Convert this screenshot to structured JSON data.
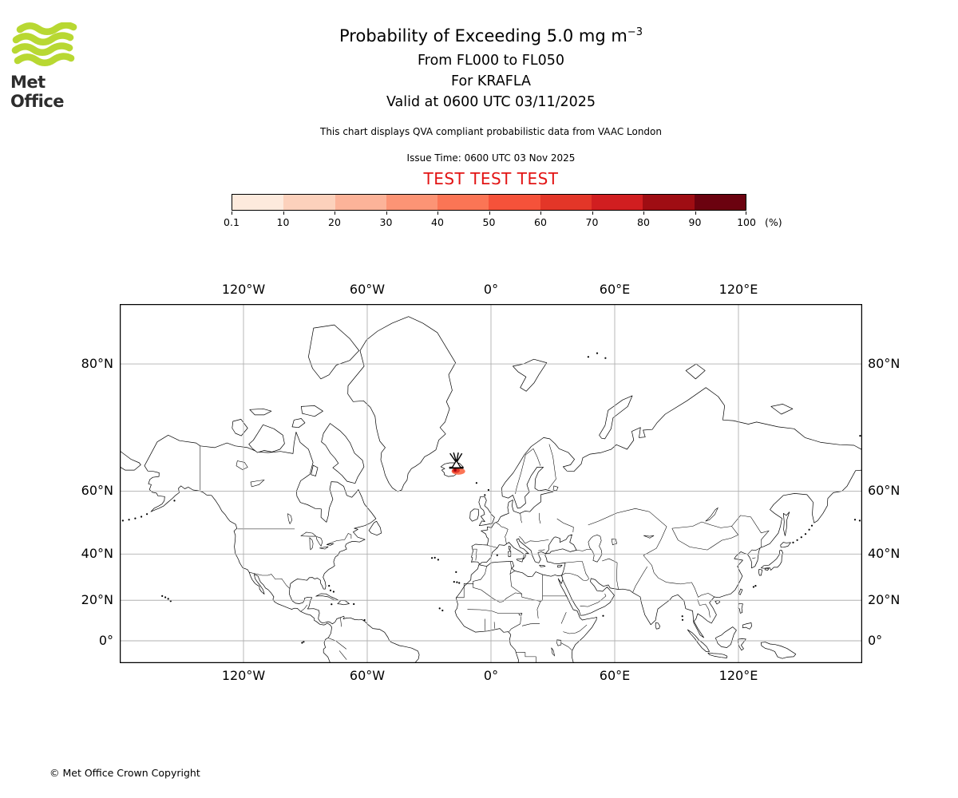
{
  "logo": {
    "text": "Met Office",
    "wave_color": "#b8d832",
    "text_color": "#2d2d2d"
  },
  "header": {
    "title_main": "Probability of Exceeding 5.0 mg m",
    "title_sup": "−3",
    "line2": "From FL000 to FL050",
    "line3": "For KRAFLA",
    "line4": "Valid at 0600 UTC 03/11/2025"
  },
  "note": "This chart displays QVA compliant probabilistic data from VAAC London",
  "issue_time": "Issue Time: 0600 UTC 03 Nov 2025",
  "test_banner": "TEST TEST TEST",
  "test_color": "#e21414",
  "colorbar": {
    "unit_label": "(%)",
    "tick_labels": [
      "0.1",
      "10",
      "20",
      "30",
      "40",
      "50",
      "60",
      "70",
      "80",
      "90",
      "100"
    ],
    "colors": [
      "#fdeadd",
      "#fcd1bc",
      "#fcb399",
      "#fc9475",
      "#fb7555",
      "#f5523a",
      "#e33628",
      "#d11e20",
      "#9f0d13",
      "#6b020f"
    ]
  },
  "map": {
    "top_lon_labels": [
      "120°W",
      "60°W",
      "0°",
      "60°E",
      "120°E"
    ],
    "bottom_lon_labels": [
      "120°W",
      "60°W",
      "0°",
      "60°E",
      "120°E"
    ],
    "left_lat_labels": [
      "80°N",
      "60°N",
      "40°N",
      "20°N",
      "0°"
    ],
    "right_lat_labels": [
      "80°N",
      "60°N",
      "40°N",
      "20°N",
      "0°"
    ],
    "grid_lons": [
      -120,
      -60,
      0,
      60,
      120
    ],
    "grid_lats": [
      80,
      60,
      40,
      20,
      0
    ],
    "grid_color": "#b0b0b0"
  },
  "volcano": {
    "name": "KRAFLA",
    "lon": -16.78,
    "lat": 65.73
  },
  "footer": "© Met Office Crown Copyright",
  "chart_data": {
    "type": "map",
    "title": "Probability of Exceeding 5.0 mg m⁻³",
    "layer": "FL000 to FL050",
    "volcano": "KRAFLA",
    "valid_time": "0600 UTC 03/11/2025",
    "issue_time": "0600 UTC 03 Nov 2025",
    "source": "VAAC London",
    "scale_percent": [
      0.1,
      10,
      20,
      30,
      40,
      50,
      60,
      70,
      80,
      90,
      100
    ],
    "projection": "mercator",
    "lon_range": [
      -180,
      180
    ],
    "lat_range": [
      -11.3,
      84.1
    ],
    "regions": [
      {
        "volcano": "KRAFLA",
        "lon": -16.78,
        "lat": 65.73,
        "max_probability_percent": 70,
        "note": "small exceedance area over NE Iceland near the volcano"
      }
    ]
  }
}
